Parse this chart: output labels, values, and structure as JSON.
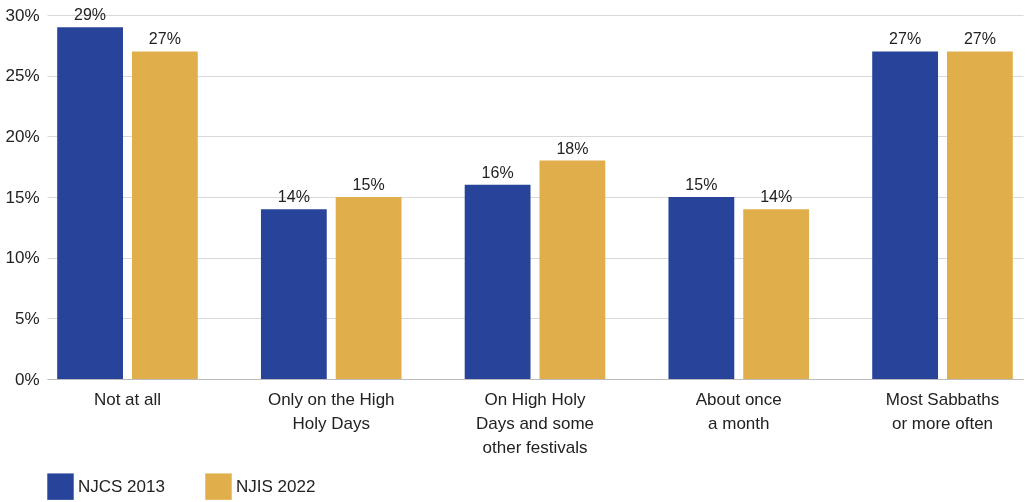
{
  "chart_data": {
    "type": "bar",
    "categories": [
      "Not at all",
      "Only on the High\nHoly Days",
      "On High Holy\nDays and some\nother festivals",
      "About once\na month",
      "Most Sabbaths\nor more often"
    ],
    "series": [
      {
        "name": "NJCS 2013",
        "color": "#27449a",
        "values": [
          29,
          14,
          16,
          15,
          27
        ],
        "value_labels": [
          "29%",
          "14%",
          "16%",
          "15%",
          "27%"
        ]
      },
      {
        "name": "NJIS 2022",
        "color": "#e0ae4a",
        "values": [
          27,
          15,
          18,
          14,
          27
        ],
        "value_labels": [
          "27%",
          "15%",
          "18%",
          "14%",
          "27%"
        ]
      }
    ],
    "ylim": [
      0,
      30
    ],
    "yticks": [
      {
        "value": 0,
        "label": "0%"
      },
      {
        "value": 5,
        "label": "5%"
      },
      {
        "value": 10,
        "label": "10%"
      },
      {
        "value": 15,
        "label": "15%"
      },
      {
        "value": 20,
        "label": "20%"
      },
      {
        "value": 25,
        "label": "25%"
      },
      {
        "value": 30,
        "label": "30%"
      }
    ],
    "grid": "y",
    "legend": "bottom"
  }
}
